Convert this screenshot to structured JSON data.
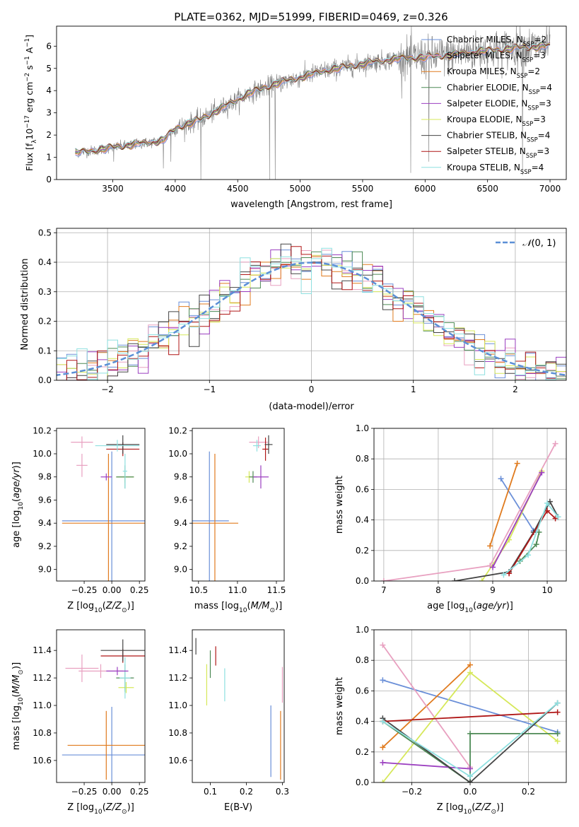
{
  "figure_title": "PLATE=0362, MJD=51999, FIBERID=0469, z=0.326",
  "colors": {
    "Chabrier MILES": "#6a8fd8",
    "Salpeter MILES": "#e8a0c0",
    "Kroupa MILES": "#e07b1f",
    "Chabrier ELODIE": "#4d8a55",
    "Salpeter ELODIE": "#9b3fc0",
    "Kroupa ELODIE": "#d6e85a",
    "Chabrier STELIB": "#444444",
    "Salpeter STELIB": "#b01717",
    "Kroupa STELIB": "#8ee0e0",
    "data": "#808080",
    "gaussian": "#5b8fd6"
  },
  "chart_data": [
    {
      "type": "line",
      "id": "spectrum",
      "xlabel": "wavelength [Angstrom, rest frame]",
      "ylabel": "Flux [f_λ 10^-17 erg cm^-2 s^-1 A^-1]",
      "xlim": [
        3050,
        7130
      ],
      "ylim": [
        0,
        6.9
      ],
      "xticks": [
        3500,
        4000,
        4500,
        5000,
        5500,
        6000,
        6500,
        7000
      ],
      "yticks": [
        0,
        1,
        2,
        3,
        4,
        5,
        6
      ],
      "legend_position": "top-right",
      "legend": [
        {
          "label": "Chabrier MILES, N_SSP=2"
        },
        {
          "label": "Salpeter MILES, N_SSP=3"
        },
        {
          "label": "Kroupa MILES, N_SSP=2"
        },
        {
          "label": "Chabrier ELODIE, N_SSP=4"
        },
        {
          "label": "Salpeter ELODIE, N_SSP=3"
        },
        {
          "label": "Kroupa ELODIE, N_SSP=3"
        },
        {
          "label": "Chabrier STELIB, N_SSP=4"
        },
        {
          "label": "Salpeter STELIB, N_SSP=3"
        },
        {
          "label": "Kroupa STELIB, N_SSP=4"
        }
      ],
      "continuum": [
        [
          3200,
          1.2
        ],
        [
          3400,
          1.35
        ],
        [
          3500,
          1.45
        ],
        [
          3700,
          1.6
        ],
        [
          3900,
          1.75
        ],
        [
          4000,
          2.3
        ],
        [
          4200,
          2.7
        ],
        [
          4400,
          3.3
        ],
        [
          4600,
          3.9
        ],
        [
          4800,
          4.3
        ],
        [
          5000,
          4.6
        ],
        [
          5200,
          4.9
        ],
        [
          5400,
          5.1
        ],
        [
          5600,
          5.3
        ],
        [
          5800,
          5.45
        ],
        [
          6000,
          5.5
        ],
        [
          6200,
          5.6
        ],
        [
          6400,
          5.75
        ],
        [
          6600,
          5.85
        ],
        [
          6800,
          5.95
        ],
        [
          7000,
          6.0
        ]
      ],
      "data_range": [
        3200,
        7000
      ],
      "deep_lines": [
        [
          4205,
          0
        ],
        [
          4755,
          0
        ],
        [
          4800,
          0
        ],
        [
          5885,
          0.3
        ],
        [
          6030,
          0.8
        ],
        [
          6780,
          0.2
        ],
        [
          3508,
          0.8
        ],
        [
          3905,
          0.5
        ],
        [
          3965,
          0.8
        ]
      ]
    },
    {
      "type": "step",
      "id": "residuals",
      "xlabel": "(data-model)/error",
      "ylabel": "Normed distribution",
      "xlim": [
        -2.5,
        2.5
      ],
      "ylim": [
        0,
        0.515
      ],
      "xticks": [
        -2,
        -1,
        0,
        1,
        2
      ],
      "yticks": [
        0.0,
        0.1,
        0.2,
        0.3,
        0.4,
        0.5
      ],
      "legend_position": "top-right",
      "legend": [
        {
          "label": "N(0,1)"
        }
      ],
      "bin_width": 0.1
    },
    {
      "type": "errorbar",
      "id": "age-vs-Z",
      "xlabel": "Z [log10(Z/Z⊙)]",
      "ylabel": "age [log10(age/yr)]",
      "xlim": [
        -0.5,
        0.3
      ],
      "ylim": [
        8.9,
        10.22
      ],
      "xticks": [
        -0.25,
        0.0,
        0.25
      ],
      "yticks": [
        9.0,
        9.2,
        9.4,
        9.6,
        9.8,
        10.0,
        10.2
      ],
      "points": [
        {
          "model": "Chabrier MILES",
          "x": 0.0,
          "xerr": 0.45,
          "y": 9.42,
          "yerr": 0.6
        },
        {
          "model": "Kroupa MILES",
          "x": -0.03,
          "xerr": 0.42,
          "y": 9.4,
          "yerr": 0.6
        },
        {
          "model": "Salpeter MILES",
          "x": -0.27,
          "xerr": 0.1,
          "y": 10.1,
          "yerr": 0.05
        },
        {
          "model": "Salpeter MILES",
          "x": -0.27,
          "xerr": 0.05,
          "y": 9.9,
          "yerr": 0.1
        },
        {
          "model": "Kroupa ELODIE",
          "x": 0.12,
          "xerr": 0.08,
          "y": 9.8,
          "yerr": 0.05
        },
        {
          "model": "Chabrier ELODIE",
          "x": 0.12,
          "xerr": 0.08,
          "y": 9.8,
          "yerr": 0.1
        },
        {
          "model": "Salpeter STELIB",
          "x": 0.1,
          "xerr": 0.15,
          "y": 10.04,
          "yerr": 0.06
        },
        {
          "model": "Chabrier STELIB",
          "x": 0.1,
          "xerr": 0.15,
          "y": 10.08,
          "yerr": 0.08
        },
        {
          "model": "Kroupa STELIB",
          "x": 0.05,
          "xerr": 0.2,
          "y": 10.07,
          "yerr": 0.05
        },
        {
          "model": "Salpeter ELODIE",
          "x": -0.05,
          "xerr": 0.05,
          "y": 9.8,
          "yerr": 0.03
        },
        {
          "model": "Kroupa STELIB",
          "x": 0.12,
          "xerr": 0.02,
          "y": 9.85,
          "yerr": 0.15
        }
      ]
    },
    {
      "type": "errorbar",
      "id": "age-vs-mass",
      "xlabel": "mass [log10(M/M⊙)]",
      "ylabel": "",
      "xlim": [
        10.42,
        11.6
      ],
      "ylim": [
        8.9,
        10.22
      ],
      "xticks": [
        10.5,
        11.0,
        11.5
      ],
      "yticks": [
        9.0,
        9.2,
        9.4,
        9.6,
        9.8,
        10.0,
        10.2
      ],
      "points": [
        {
          "model": "Chabrier MILES",
          "x": 10.64,
          "xerr": 0.25,
          "y": 9.42,
          "yerr": 0.6
        },
        {
          "model": "Kroupa MILES",
          "x": 10.71,
          "xerr": 0.3,
          "y": 9.4,
          "yerr": 0.6
        },
        {
          "model": "Salpeter MILES",
          "x": 11.27,
          "xerr": 0.12,
          "y": 10.1,
          "yerr": 0.05
        },
        {
          "model": "Kroupa ELODIE",
          "x": 11.15,
          "xerr": 0.05,
          "y": 9.8,
          "yerr": 0.05
        },
        {
          "model": "Chabrier ELODIE",
          "x": 11.2,
          "xerr": 0.05,
          "y": 9.8,
          "yerr": 0.05
        },
        {
          "model": "Salpeter ELODIE",
          "x": 11.3,
          "xerr": 0.1,
          "y": 9.8,
          "yerr": 0.1
        },
        {
          "model": "Salpeter STELIB",
          "x": 11.36,
          "xerr": 0.04,
          "y": 10.04,
          "yerr": 0.1
        },
        {
          "model": "Chabrier STELIB",
          "x": 11.4,
          "xerr": 0.05,
          "y": 10.08,
          "yerr": 0.08
        },
        {
          "model": "Kroupa STELIB",
          "x": 11.25,
          "xerr": 0.05,
          "y": 10.07,
          "yerr": 0.05
        }
      ]
    },
    {
      "type": "line",
      "id": "massweight-vs-age",
      "xlabel": "age [log10(age/yr)]",
      "ylabel": "mass weight",
      "xlim": [
        6.82,
        10.35
      ],
      "ylim": [
        0,
        1.0
      ],
      "xticks": [
        7,
        8,
        9,
        10
      ],
      "yticks": [
        0.0,
        0.2,
        0.4,
        0.6,
        0.8,
        1.0
      ],
      "series": [
        {
          "model": "Chabrier MILES",
          "points": [
            [
              9.15,
              0.67
            ],
            [
              9.75,
              0.33
            ]
          ]
        },
        {
          "model": "Kroupa MILES",
          "points": [
            [
              8.95,
              0.23
            ],
            [
              9.45,
              0.77
            ]
          ]
        },
        {
          "model": "Salpeter MILES",
          "points": [
            [
              7.0,
              0.0
            ],
            [
              8.95,
              0.1
            ],
            [
              10.15,
              0.9
            ]
          ]
        },
        {
          "model": "Kroupa ELODIE",
          "points": [
            [
              8.8,
              0.0
            ],
            [
              9.3,
              0.27
            ],
            [
              9.9,
              0.72
            ]
          ]
        },
        {
          "model": "Chabrier ELODIE",
          "points": [
            [
              9.5,
              0.13
            ],
            [
              9.8,
              0.24
            ],
            [
              9.85,
              0.32
            ]
          ]
        },
        {
          "model": "Salpeter ELODIE",
          "points": [
            [
              9.0,
              0.09
            ],
            [
              9.9,
              0.71
            ]
          ]
        },
        {
          "model": "Chabrier STELIB",
          "points": [
            [
              8.3,
              0.0
            ],
            [
              9.3,
              0.06
            ],
            [
              9.75,
              0.32
            ],
            [
              10.05,
              0.52
            ],
            [
              10.2,
              0.42
            ]
          ]
        },
        {
          "model": "Salpeter STELIB",
          "points": [
            [
              9.3,
              0.05
            ],
            [
              10.0,
              0.46
            ],
            [
              10.15,
              0.41
            ]
          ]
        },
        {
          "model": "Kroupa STELIB",
          "points": [
            [
              9.2,
              0.04
            ],
            [
              9.65,
              0.17
            ],
            [
              10.0,
              0.51
            ],
            [
              10.2,
              0.42
            ]
          ]
        }
      ]
    },
    {
      "type": "errorbar",
      "id": "mass-vs-Z",
      "xlabel": "Z [log10(Z/Z⊙)]",
      "ylabel": "mass [log10(M/M⊙)]",
      "xlim": [
        -0.5,
        0.3
      ],
      "ylim": [
        10.44,
        11.55
      ],
      "xticks": [
        -0.25,
        0.0,
        0.25
      ],
      "yticks": [
        10.6,
        10.8,
        11.0,
        11.2,
        11.4
      ],
      "points": [
        {
          "model": "Chabrier MILES",
          "x": 0.0,
          "xerr": 0.45,
          "y": 10.64,
          "yerr": 0.35
        },
        {
          "model": "Kroupa MILES",
          "x": -0.05,
          "xerr": 0.35,
          "y": 10.71,
          "yerr": 0.25
        },
        {
          "model": "Salpeter MILES",
          "x": -0.27,
          "xerr": 0.15,
          "y": 11.27,
          "yerr": 0.1
        },
        {
          "model": "Salpeter MILES",
          "x": -0.1,
          "xerr": 0.2,
          "y": 11.25,
          "yerr": 0.05
        },
        {
          "model": "Kroupa ELODIE",
          "x": 0.13,
          "xerr": 0.07,
          "y": 11.13,
          "yerr": 0.04
        },
        {
          "model": "Chabrier ELODIE",
          "x": 0.12,
          "xerr": 0.08,
          "y": 11.2,
          "yerr": 0.1
        },
        {
          "model": "Salpeter STELIB",
          "x": 0.1,
          "xerr": 0.2,
          "y": 11.36,
          "yerr": 0.05
        },
        {
          "model": "Chabrier STELIB",
          "x": 0.1,
          "xerr": 0.2,
          "y": 11.4,
          "yerr": 0.08
        },
        {
          "model": "Kroupa STELIB",
          "x": 0.12,
          "xerr": 0.05,
          "y": 11.2,
          "yerr": 0.15
        },
        {
          "model": "Salpeter ELODIE",
          "x": 0.05,
          "xerr": 0.1,
          "y": 11.25,
          "yerr": 0.03
        }
      ]
    },
    {
      "type": "errorbar",
      "id": "mass-vs-ebv",
      "xlabel": "E(B-V)",
      "ylabel": "",
      "xlim": [
        0.05,
        0.305
      ],
      "ylim": [
        10.44,
        11.55
      ],
      "xticks": [
        0.1,
        0.2,
        0.3
      ],
      "yticks": [
        10.6,
        10.8,
        11.0,
        11.2,
        11.4
      ],
      "points": [
        {
          "model": "Chabrier STELIB",
          "x": 0.06,
          "xerr": 0.0,
          "y": 11.43,
          "yerr": 0.06
        },
        {
          "model": "Kroupa ELODIE",
          "x": 0.09,
          "xerr": 0.0,
          "y": 11.15,
          "yerr": 0.15
        },
        {
          "model": "Chabrier ELODIE",
          "x": 0.1,
          "xerr": 0.0,
          "y": 11.3,
          "yerr": 0.1
        },
        {
          "model": "Salpeter STELIB",
          "x": 0.115,
          "xerr": 0.0,
          "y": 11.36,
          "yerr": 0.07
        },
        {
          "model": "Kroupa STELIB",
          "x": 0.14,
          "xerr": 0.0,
          "y": 11.15,
          "yerr": 0.12
        },
        {
          "model": "Chabrier MILES",
          "x": 0.268,
          "xerr": 0.0,
          "y": 10.74,
          "yerr": 0.26
        },
        {
          "model": "Kroupa MILES",
          "x": 0.295,
          "xerr": 0.0,
          "y": 10.71,
          "yerr": 0.25
        },
        {
          "model": "Salpeter MILES",
          "x": 0.3,
          "xerr": 0.0,
          "y": 11.15,
          "yerr": 0.13
        }
      ]
    },
    {
      "type": "line",
      "id": "massweight-vs-Z",
      "xlabel": "Z [log10(Z/Z⊙)]",
      "ylabel": "mass weight",
      "xlim": [
        -0.33,
        0.33
      ],
      "ylim": [
        0,
        1.0
      ],
      "xticks": [
        -0.2,
        0.0,
        0.2
      ],
      "yticks": [
        0.0,
        0.2,
        0.4,
        0.6,
        0.8,
        1.0
      ],
      "series": [
        {
          "model": "Chabrier MILES",
          "points": [
            [
              -0.3,
              0.67
            ],
            [
              0.3,
              0.33
            ]
          ]
        },
        {
          "model": "Kroupa MILES",
          "points": [
            [
              -0.3,
              0.23
            ],
            [
              0.0,
              0.77
            ]
          ]
        },
        {
          "model": "Salpeter MILES",
          "points": [
            [
              -0.3,
              0.9
            ],
            [
              0.0,
              0.1
            ]
          ]
        },
        {
          "model": "Kroupa ELODIE",
          "points": [
            [
              -0.3,
              0.0
            ],
            [
              0.0,
              0.72
            ],
            [
              0.3,
              0.27
            ]
          ]
        },
        {
          "model": "Chabrier ELODIE",
          "points": [
            [
              -0.3,
              0.4
            ],
            [
              0.0,
              0.0
            ],
            [
              0.0,
              0.32
            ],
            [
              0.3,
              0.32
            ]
          ]
        },
        {
          "model": "Salpeter ELODIE",
          "points": [
            [
              -0.3,
              0.13
            ],
            [
              0.0,
              0.09
            ]
          ]
        },
        {
          "model": "Chabrier STELIB",
          "points": [
            [
              -0.3,
              0.42
            ],
            [
              0.0,
              0.0
            ],
            [
              0.3,
              0.52
            ]
          ]
        },
        {
          "model": "Salpeter STELIB",
          "points": [
            [
              -0.3,
              0.4
            ],
            [
              0.3,
              0.46
            ]
          ]
        },
        {
          "model": "Kroupa STELIB",
          "points": [
            [
              -0.3,
              0.4
            ],
            [
              0.0,
              0.04
            ],
            [
              0.3,
              0.52
            ]
          ]
        }
      ]
    }
  ]
}
